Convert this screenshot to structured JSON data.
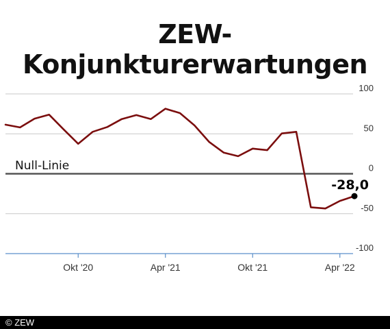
{
  "title": "ZEW-Konjunkturerwartungen",
  "footer": "© ZEW",
  "colors": {
    "line": "#7b0e0e",
    "grid": "#c8c8c8",
    "zero": "#555555",
    "axis": "#5b8fc9",
    "footer_bg": "#000000"
  },
  "chart_data": {
    "type": "line",
    "title": "ZEW-Konjunkturerwartungen",
    "x_ticks": [
      "Okt '20",
      "Apr '21",
      "Okt '21",
      "Apr '22"
    ],
    "x_tick_months": [
      "2020-10",
      "2021-04",
      "2021-10",
      "2022-04"
    ],
    "y_ticks": [
      "100",
      "50",
      "0",
      "-50",
      "-100"
    ],
    "ylim": [
      -100,
      100
    ],
    "grid": true,
    "zero_line_label": "Null-Linie",
    "series": [
      {
        "x": [
          "2020-05",
          "2020-06",
          "2020-07",
          "2020-08",
          "2020-09",
          "2020-10",
          "2020-11",
          "2020-12",
          "2021-01",
          "2021-02",
          "2021-03",
          "2021-04",
          "2021-05",
          "2021-06",
          "2021-07",
          "2021-08",
          "2021-09",
          "2021-10",
          "2021-11",
          "2021-12",
          "2022-01",
          "2022-02",
          "2022-03",
          "2022-04",
          "2022-05"
        ],
        "values": [
          61.5,
          58.0,
          69.0,
          74.0,
          55.5,
          37.5,
          52.5,
          58.5,
          68.5,
          73.5,
          68.5,
          81.5,
          76.0,
          60.5,
          40.0,
          26.5,
          22.0,
          31.5,
          29.5,
          50.5,
          52.5,
          -42.0,
          -43.5,
          -34.0,
          -28.0
        ]
      }
    ],
    "annotations": [
      {
        "text": "-28,0",
        "x": "2022-05",
        "y": -28.0
      }
    ]
  }
}
